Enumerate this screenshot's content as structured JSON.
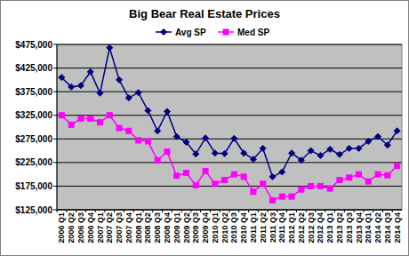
{
  "chart_data": {
    "type": "line",
    "title": "Big Bear Real Estate Prices",
    "categories": [
      "2006 Q1",
      "2006 Q2",
      "2006 Q3",
      "2006 Q4",
      "2007 Q1",
      "2007 Q2",
      "2007 Q3",
      "2007 Q4",
      "2008 Q1",
      "2008 Q2",
      "2008 Q3",
      "2008 Q4",
      "2009 Q1",
      "2009 Q2",
      "2009 Q3",
      "2009 Q4",
      "2010 Q1",
      "2010 Q2",
      "2010 Q3",
      "2010 Q4",
      "2011 Q1",
      "2011 Q2",
      "2011 Q3",
      "2011 Q4",
      "2012 Q1",
      "2012 Q2",
      "2012 Q3",
      "2012 Q4",
      "2013 Q1",
      "2013 Q2",
      "2013 Q3",
      "2013 Q4",
      "2014 Q1",
      "2014 Q2",
      "2014 Q3",
      "2014 Q4"
    ],
    "series": [
      {
        "name": "Avg SP",
        "color": "#000080",
        "marker": "diamond",
        "values": [
          405000,
          385000,
          388000,
          417000,
          372000,
          468000,
          400000,
          362000,
          373000,
          335000,
          292000,
          333000,
          280000,
          268000,
          243000,
          277000,
          245000,
          244000,
          276000,
          245000,
          232000,
          255000,
          195000,
          205000,
          245000,
          230000,
          250000,
          240000,
          253000,
          242000,
          255000,
          255000,
          270000,
          280000,
          262000,
          292000
        ]
      },
      {
        "name": "Med SP",
        "color": "#ff00ff",
        "marker": "square",
        "values": [
          325000,
          305000,
          318000,
          318000,
          310000,
          325000,
          298000,
          292000,
          272000,
          270000,
          230000,
          248000,
          197000,
          203000,
          177000,
          207000,
          180000,
          188000,
          200000,
          195000,
          163000,
          180000,
          145000,
          153000,
          153000,
          168000,
          175000,
          175000,
          170000,
          188000,
          193000,
          200000,
          185000,
          200000,
          198000,
          218000
        ]
      }
    ],
    "ylim": [
      125000,
      475000
    ],
    "yticks": [
      {
        "value": 125000,
        "label": "$125,000"
      },
      {
        "value": 175000,
        "label": "$175,000"
      },
      {
        "value": 225000,
        "label": "$225,000"
      },
      {
        "value": 275000,
        "label": "$275,000"
      },
      {
        "value": 325000,
        "label": "$325,000"
      },
      {
        "value": 375000,
        "label": "$375,000"
      },
      {
        "value": 425000,
        "label": "$425,000"
      },
      {
        "value": 475000,
        "label": "$475,000"
      }
    ],
    "grid": true,
    "legend": "top"
  }
}
